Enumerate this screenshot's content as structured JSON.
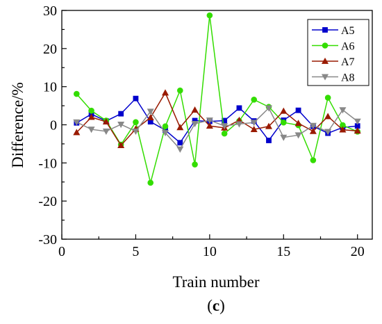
{
  "chart_data": {
    "type": "line",
    "xlabel": "Train number",
    "ylabel": "Difference/%",
    "caption_open": "(",
    "caption_letter": "c",
    "caption_close": ")",
    "xlim": [
      0,
      21
    ],
    "ylim": [
      -30,
      30
    ],
    "xticks": [
      0,
      5,
      10,
      15,
      20
    ],
    "yticks": [
      -30,
      -20,
      -10,
      0,
      10,
      20,
      30
    ],
    "grid": false,
    "legend_position": "top-right",
    "x": [
      1,
      2,
      3,
      4,
      5,
      6,
      7,
      8,
      9,
      10,
      11,
      12,
      13,
      14,
      15,
      16,
      17,
      18,
      19,
      20
    ],
    "series": [
      {
        "name": "A5",
        "color": "#0000cc",
        "marker": "square",
        "values": [
          0.5,
          2.8,
          1.0,
          2.9,
          6.9,
          0.8,
          -1.4,
          -4.7,
          1.1,
          0.9,
          1.1,
          4.4,
          1.0,
          -4.1,
          1.2,
          3.8,
          -0.4,
          -2.2,
          -0.7,
          -0.3
        ]
      },
      {
        "name": "A6",
        "color": "#33dd00",
        "marker": "circle",
        "values": [
          8.1,
          3.7,
          1.1,
          -5.2,
          0.7,
          -15.2,
          -0.4,
          9.0,
          -10.4,
          28.7,
          -2.3,
          1.0,
          6.6,
          4.7,
          0.6,
          -0.1,
          -9.3,
          7.1,
          -0.1,
          -1.8
        ]
      },
      {
        "name": "A7",
        "color": "#991a00",
        "marker": "triangle-up",
        "values": [
          -2.0,
          2.0,
          0.8,
          -5.4,
          -1.1,
          1.9,
          8.4,
          -0.7,
          3.9,
          -0.3,
          -0.8,
          1.2,
          -1.2,
          -0.4,
          3.6,
          0.4,
          -1.7,
          2.2,
          -1.3,
          -1.6
        ]
      },
      {
        "name": "A8",
        "color": "#888888",
        "marker": "triangle-down",
        "values": [
          0.7,
          -1.2,
          -1.7,
          0.1,
          -1.7,
          3.5,
          -2.1,
          -6.4,
          0.3,
          1.2,
          -0.3,
          0.2,
          0.6,
          4.4,
          -3.3,
          -2.7,
          -0.2,
          -1.8,
          3.9,
          0.9
        ]
      }
    ]
  }
}
